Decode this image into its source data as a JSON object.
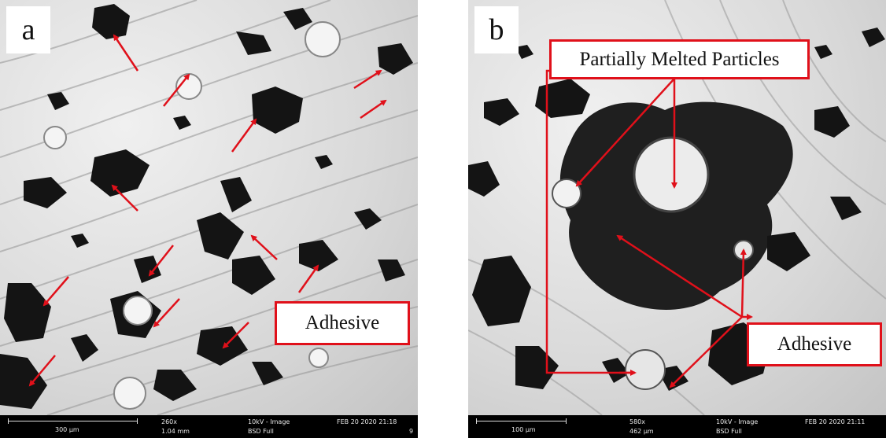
{
  "panel_a": {
    "letter": "a",
    "callout": "Adhesive",
    "info": {
      "scale": "300 µm",
      "magnification": "260x",
      "hfw": "1.04 mm",
      "voltage": "10kV - Image",
      "detector": "BSD Full",
      "datetime": "FEB 20 2020 21:18",
      "extra": "9"
    }
  },
  "panel_b": {
    "letter": "b",
    "callout_top": "Partially Melted Particles",
    "callout_bottom": "Adhesive",
    "info": {
      "scale": "100 µm",
      "magnification": "580x",
      "hfw": "462 µm",
      "voltage": "10kV - Image",
      "detector": "BSD Full",
      "datetime": "FEB 20 2020 21:11"
    }
  },
  "colors": {
    "annotation": "#e0101a",
    "particle": "#141414",
    "background": "#d8d8d8"
  }
}
